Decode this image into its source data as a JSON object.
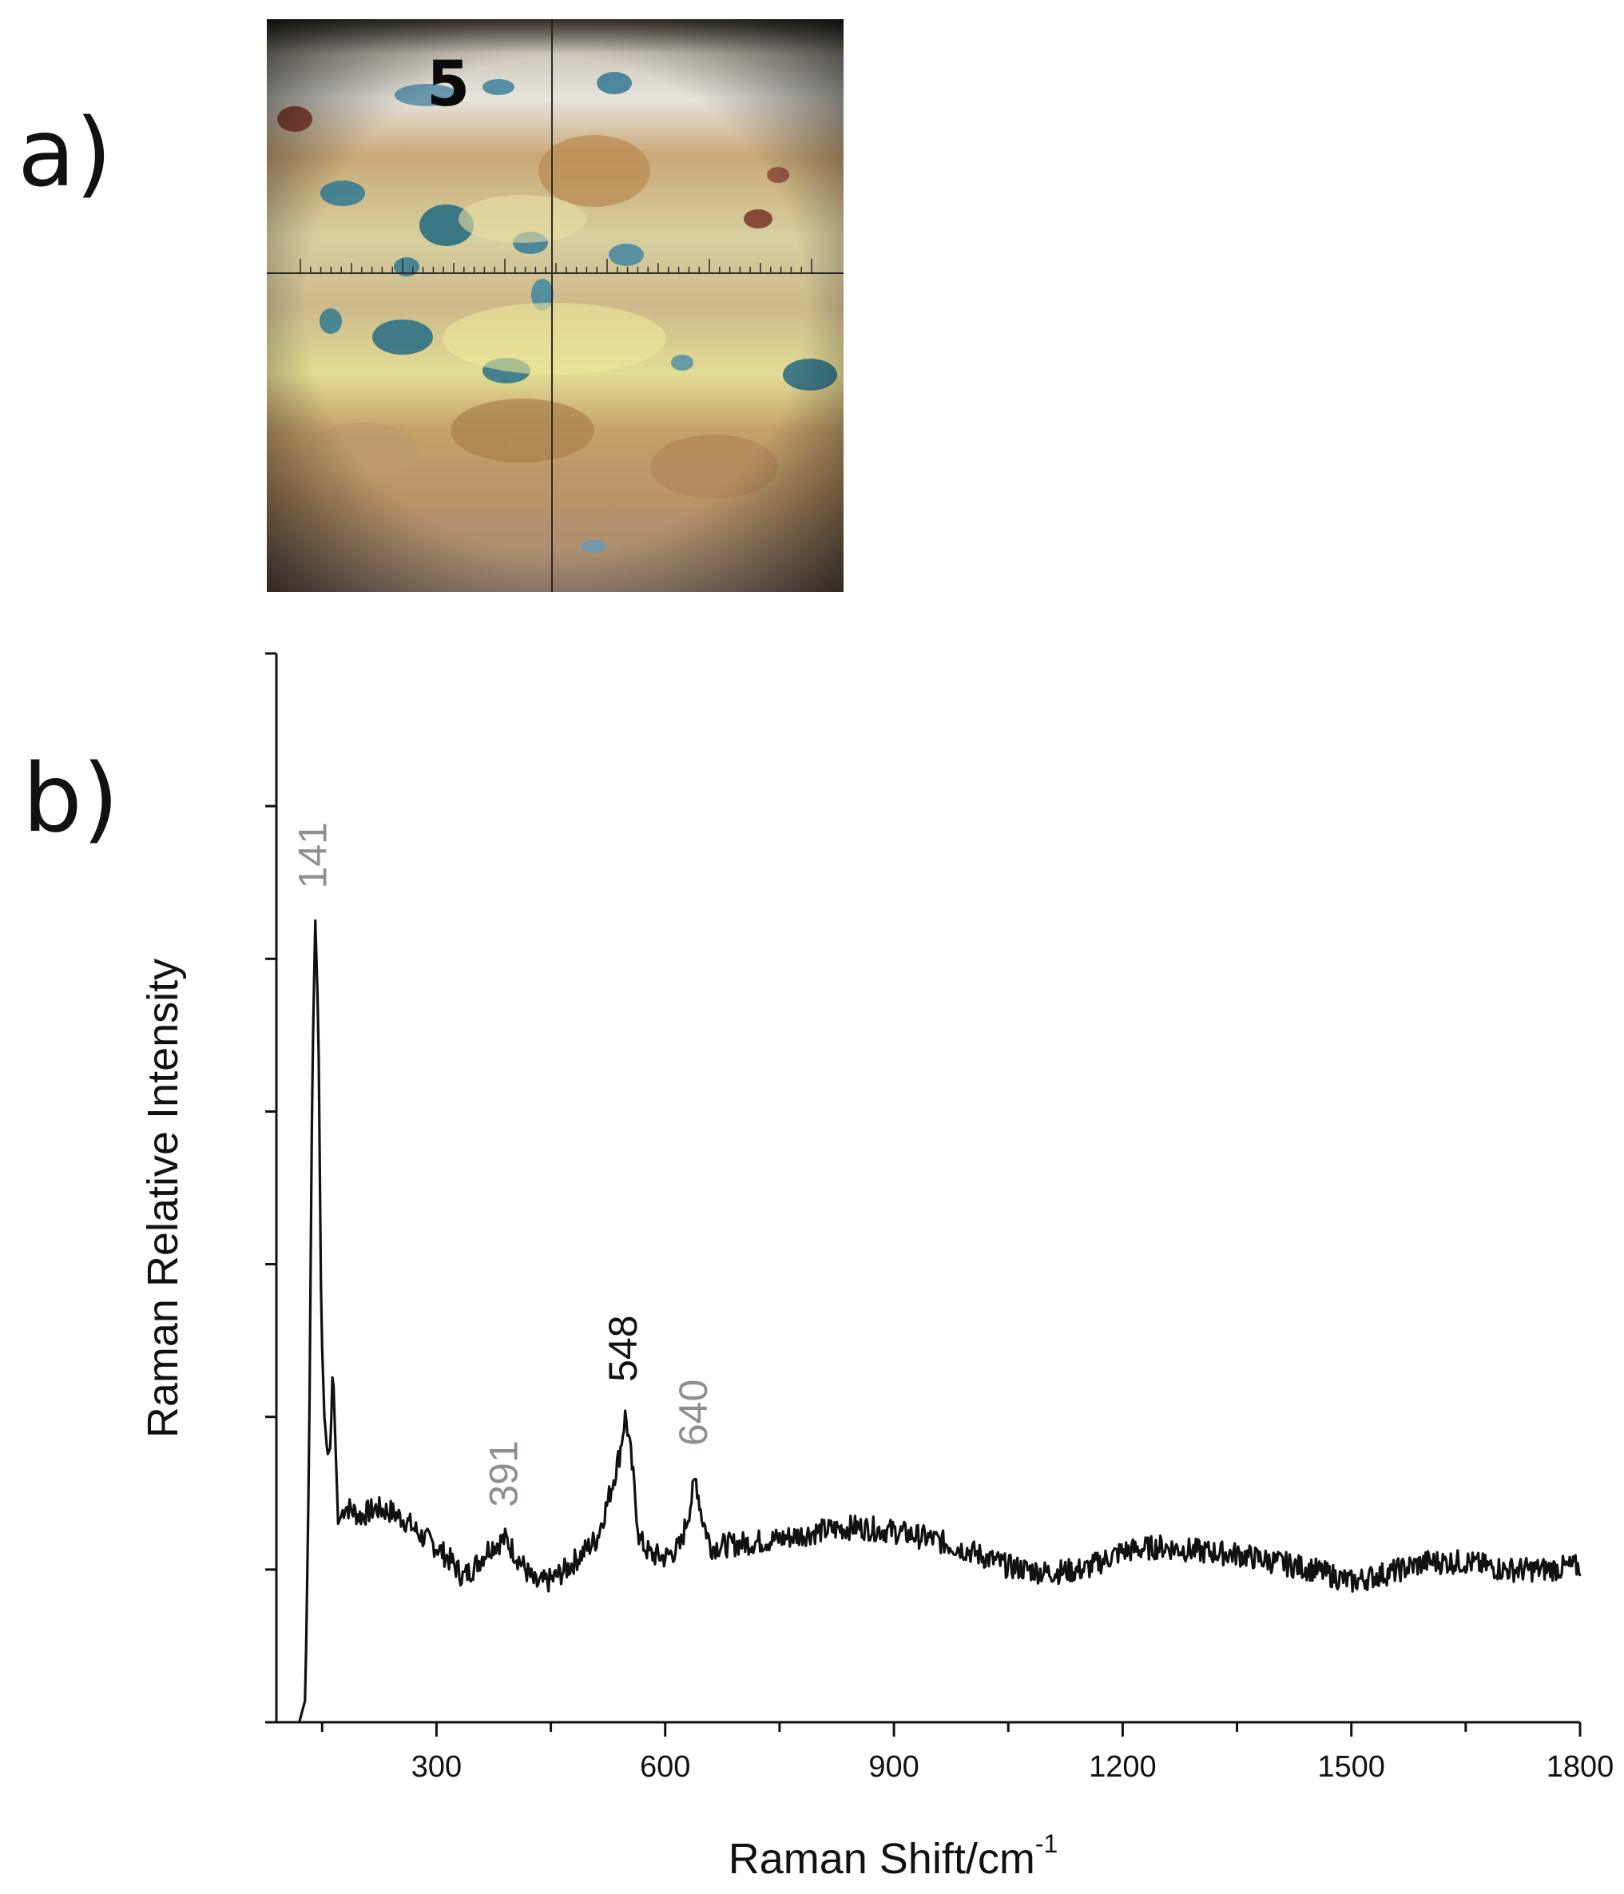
{
  "panels": {
    "a_label": "a)",
    "b_label": "b)"
  },
  "micrograph": {
    "number_label": "5",
    "colors": {
      "background_bright": "#d9cfb8",
      "ochre": "#b9915a",
      "yellow": "#e4dc8a",
      "blue_pigment": "#2f7a8c",
      "red_pigment": "#8c3a2c",
      "vignette": "#1c1a18"
    }
  },
  "chart_data": {
    "type": "line",
    "title": "",
    "xlabel": "Raman Shift/cm",
    "xlabel_superscript": "-1",
    "ylabel": "Raman Relative Intensity",
    "xlim": [
      90,
      1800
    ],
    "ylim": [
      0,
      7
    ],
    "x_tick_labels": [
      "300",
      "600",
      "900",
      "1200",
      "1500",
      "1800"
    ],
    "x_tick_values": [
      300,
      600,
      900,
      1200,
      1500,
      1800
    ],
    "y_major_ticks": [
      0,
      1,
      2,
      3,
      4,
      5,
      6,
      7
    ],
    "grid": false,
    "line_color": "#111111",
    "series": [
      {
        "points": [
          [
            120,
            0.0
          ],
          [
            128,
            0.15
          ],
          [
            133,
            1.8
          ],
          [
            137,
            4.2
          ],
          [
            141,
            5.25
          ],
          [
            145,
            4.6
          ],
          [
            149,
            2.6
          ],
          [
            153,
            2.0
          ],
          [
            157,
            1.75
          ],
          [
            161,
            1.8
          ],
          [
            164,
            2.35
          ],
          [
            167,
            1.9
          ],
          [
            171,
            1.3
          ],
          [
            180,
            1.42
          ],
          [
            200,
            1.35
          ],
          [
            220,
            1.4
          ],
          [
            240,
            1.38
          ],
          [
            260,
            1.32
          ],
          [
            280,
            1.22
          ],
          [
            300,
            1.15
          ],
          [
            320,
            1.05
          ],
          [
            335,
            0.95
          ],
          [
            350,
            1.02
          ],
          [
            370,
            1.15
          ],
          [
            391,
            1.2
          ],
          [
            410,
            1.05
          ],
          [
            430,
            0.9
          ],
          [
            450,
            0.93
          ],
          [
            470,
            1.0
          ],
          [
            490,
            1.1
          ],
          [
            510,
            1.2
          ],
          [
            525,
            1.45
          ],
          [
            540,
            1.75
          ],
          [
            548,
            2.02
          ],
          [
            556,
            1.7
          ],
          [
            566,
            1.2
          ],
          [
            580,
            1.1
          ],
          [
            600,
            1.08
          ],
          [
            620,
            1.15
          ],
          [
            632,
            1.4
          ],
          [
            640,
            1.6
          ],
          [
            648,
            1.35
          ],
          [
            660,
            1.15
          ],
          [
            700,
            1.17
          ],
          [
            750,
            1.2
          ],
          [
            800,
            1.25
          ],
          [
            850,
            1.28
          ],
          [
            900,
            1.25
          ],
          [
            950,
            1.2
          ],
          [
            1000,
            1.12
          ],
          [
            1050,
            1.02
          ],
          [
            1100,
            0.98
          ],
          [
            1150,
            1.0
          ],
          [
            1200,
            1.12
          ],
          [
            1250,
            1.15
          ],
          [
            1300,
            1.12
          ],
          [
            1350,
            1.1
          ],
          [
            1400,
            1.05
          ],
          [
            1450,
            1.0
          ],
          [
            1500,
            0.92
          ],
          [
            1550,
            0.98
          ],
          [
            1600,
            1.05
          ],
          [
            1650,
            1.05
          ],
          [
            1700,
            1.0
          ],
          [
            1750,
            1.0
          ],
          [
            1800,
            1.02
          ]
        ]
      }
    ],
    "annotations": [
      {
        "text": "141",
        "x": 141,
        "color": "#8c9090"
      },
      {
        "text": "391",
        "x": 391,
        "color": "#8c9090"
      },
      {
        "text": "548",
        "x": 548,
        "color": "#111111"
      },
      {
        "text": "640",
        "x": 640,
        "color": "#8c9090"
      }
    ]
  }
}
